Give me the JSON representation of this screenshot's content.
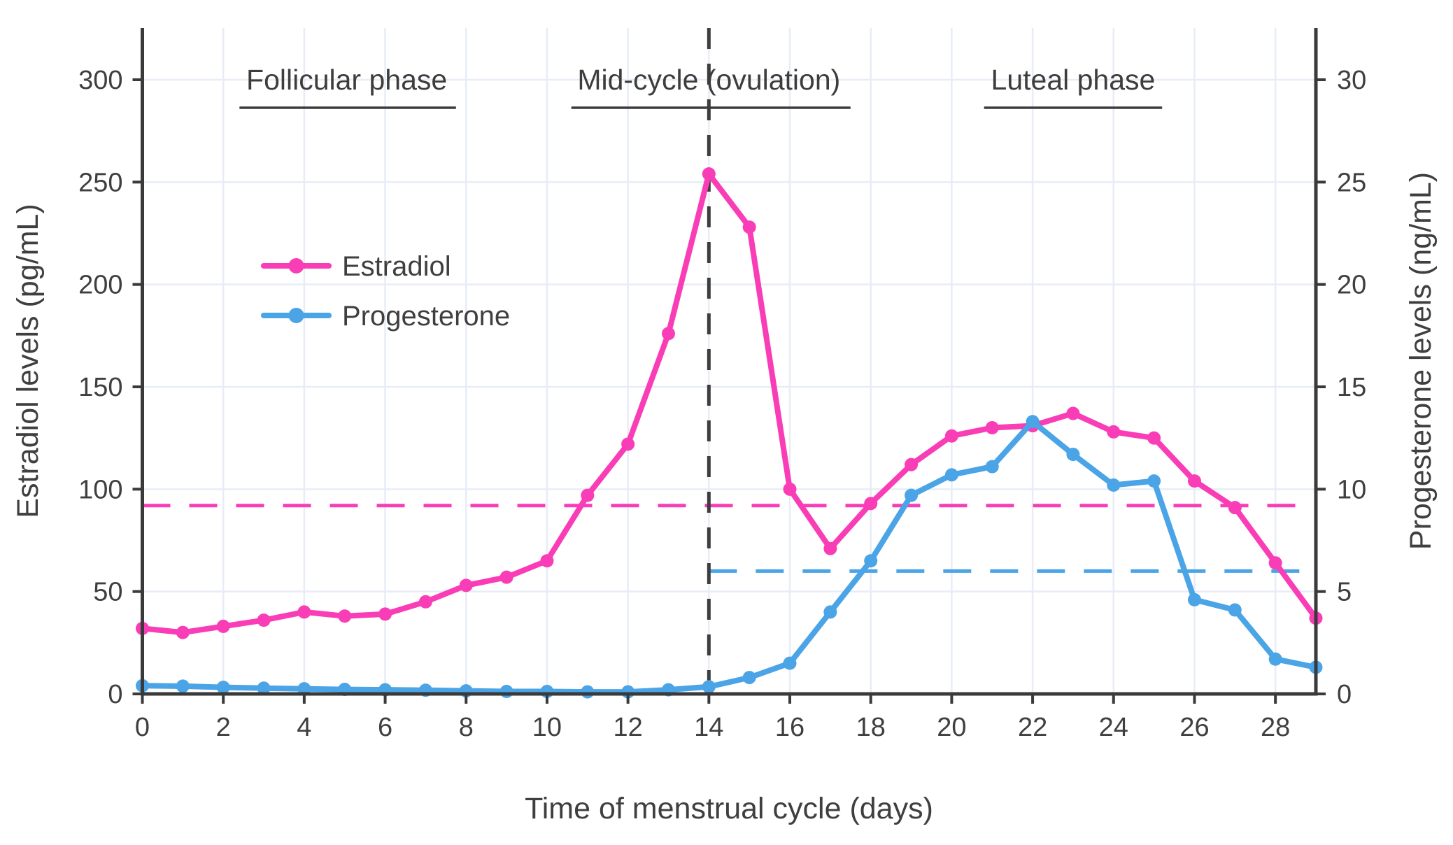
{
  "chart_data": {
    "type": "line",
    "xlabel": "Time of menstrual cycle (days)",
    "ylabel_left": "Estradiol levels (pg/mL)",
    "ylabel_right": "Progesterone levels (ng/mL)",
    "x": [
      0,
      1,
      2,
      3,
      4,
      5,
      6,
      7,
      8,
      9,
      10,
      11,
      12,
      13,
      14,
      15,
      16,
      17,
      18,
      19,
      20,
      21,
      22,
      23,
      24,
      25,
      26,
      27,
      28,
      29
    ],
    "x_ticks": [
      0,
      2,
      4,
      6,
      8,
      10,
      12,
      14,
      16,
      18,
      20,
      22,
      24,
      26,
      28
    ],
    "y_ticks_left": [
      0,
      50,
      100,
      150,
      200,
      250,
      300
    ],
    "y_ticks_right": [
      0,
      5,
      10,
      15,
      20,
      25,
      30
    ],
    "xlim": [
      0,
      29
    ],
    "ylim_left": [
      0,
      321
    ],
    "ylim_right": [
      0,
      32.1
    ],
    "grid": "on",
    "series": [
      {
        "name": "Estradiol",
        "axis": "left",
        "unit": "pg/mL",
        "color": "#F93DB6",
        "values": [
          32,
          30,
          33,
          36,
          40,
          38,
          39,
          45,
          53,
          57,
          65,
          97,
          122,
          176,
          254,
          228,
          100,
          71,
          93,
          112,
          126,
          130,
          131,
          137,
          128,
          125,
          104,
          91,
          64,
          37
        ]
      },
      {
        "name": "Progesterone",
        "axis": "right",
        "unit": "ng/mL",
        "color": "#4AA4E6",
        "values": [
          0.4,
          0.38,
          0.32,
          0.28,
          0.25,
          0.22,
          0.2,
          0.18,
          0.15,
          0.12,
          0.12,
          0.1,
          0.1,
          0.2,
          0.35,
          0.8,
          1.5,
          4.0,
          6.5,
          9.7,
          10.7,
          11.1,
          13.3,
          11.7,
          10.2,
          10.4,
          4.6,
          4.1,
          1.7,
          1.3
        ]
      }
    ],
    "reference_lines": [
      {
        "id": "estradiol-baseline",
        "type": "horizontal",
        "axis": "left",
        "value": 92,
        "from_day": 0,
        "to_day": 29,
        "color": "#F93DB6",
        "style": "dashed"
      },
      {
        "id": "progesterone-baseline",
        "type": "horizontal",
        "axis": "right",
        "value": 6,
        "from_day": 14,
        "to_day": 29,
        "color": "#4AA4E6",
        "style": "dashed"
      },
      {
        "id": "ovulation-day-line",
        "type": "vertical",
        "day": 14,
        "color": "#3d3d3d",
        "style": "dashed"
      }
    ],
    "annotations": [
      {
        "label": "Follicular phase",
        "center_day": 5.05,
        "underline_from_day": 2.4,
        "underline_to_day": 7.75
      },
      {
        "label": "Mid-cycle (ovulation)",
        "center_day": 14.0,
        "underline_from_day": 10.6,
        "underline_to_day": 17.5
      },
      {
        "label": "Luteal phase",
        "center_day": 23.0,
        "underline_from_day": 20.8,
        "underline_to_day": 25.2
      }
    ],
    "legend": {
      "position": "upper-left-inside",
      "items": [
        {
          "label": "Estradiol",
          "color": "#F93DB6"
        },
        {
          "label": "Progesterone",
          "color": "#4AA4E6"
        }
      ]
    },
    "colors": {
      "grid": "#E8ECF7",
      "spine": "#3a3a3a",
      "tick_text": "#3f3f3f",
      "annotation_text": "#3d3d3d",
      "background": "#ffffff"
    }
  }
}
